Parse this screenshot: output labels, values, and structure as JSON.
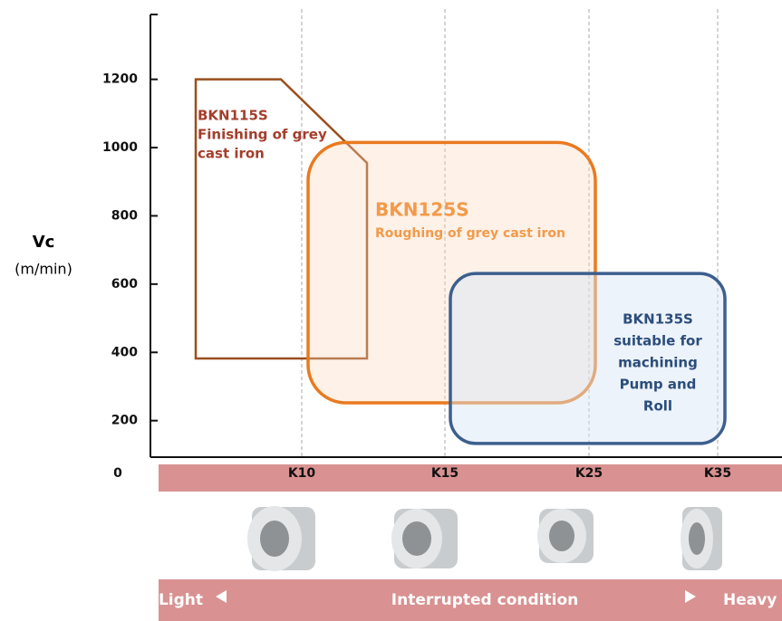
{
  "chart_data": {
    "type": "region",
    "y_label": "Vc",
    "y_unit": "(m/min)",
    "origin_label": "0",
    "ylim": [
      93,
      1390
    ],
    "yticks": [
      200,
      400,
      600,
      800,
      1000,
      1200
    ],
    "categories": [
      "K10",
      "K15",
      "K25",
      "K35"
    ],
    "regions": [
      {
        "title": "BKN115S",
        "lines": [
          "Finishing of grey",
          "cast iron"
        ],
        "color": "#9a4e1c",
        "text_color": "#a43e2c",
        "fill": "none",
        "top": 1200,
        "corner": 955,
        "bottom": 382
      },
      {
        "title": "BKN125S",
        "lines": [
          "Roughing of grey cast iron"
        ],
        "color": "#ea7a1e",
        "text_color": "#f39a4a",
        "fill": "rgba(250,215,190,0.35)",
        "top": 1015,
        "bottom": 252
      },
      {
        "title": "BKN135S",
        "lines": [
          "suitable for",
          "machining",
          "Pump and",
          "Roll"
        ],
        "color": "#3c5f8e",
        "text_color": "#2b4d7c",
        "fill": "rgba(215,228,245,0.45)",
        "top": 631,
        "bottom": 133
      }
    ],
    "condition": {
      "left": "Light",
      "middle": "Interrupted condition",
      "right": "Heavy"
    }
  }
}
